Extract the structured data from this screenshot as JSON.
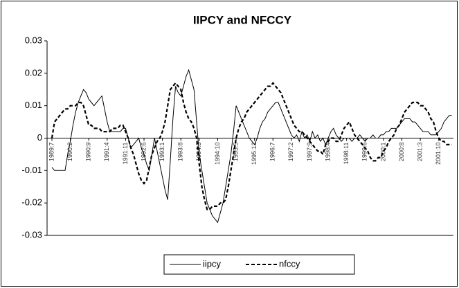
{
  "chart_data": {
    "type": "line",
    "title": "IIPCY and NFCCY",
    "categories": [
      "1989:7",
      null,
      null,
      null,
      null,
      null,
      null,
      "1990:2",
      null,
      null,
      null,
      null,
      null,
      null,
      "1990:9",
      null,
      null,
      null,
      null,
      null,
      null,
      "1991:4",
      null,
      null,
      null,
      null,
      null,
      null,
      "1991:11",
      null,
      null,
      null,
      null,
      null,
      null,
      "1992:6",
      null,
      null,
      null,
      null,
      null,
      null,
      "1993:1",
      null,
      null,
      null,
      null,
      null,
      null,
      "1993:8",
      null,
      null,
      null,
      null,
      null,
      null,
      "1994:3",
      null,
      null,
      null,
      null,
      null,
      null,
      "1994:10",
      null,
      null,
      null,
      null,
      null,
      null,
      "1995:5",
      null,
      null,
      null,
      null,
      null,
      null,
      "1995:12",
      null,
      null,
      null,
      null,
      null,
      null,
      "1996:7",
      null,
      null,
      null,
      null,
      null,
      null,
      "1997:2",
      null,
      null,
      null,
      null,
      null,
      null,
      "1997:9",
      null,
      null,
      null,
      null,
      null,
      null,
      "1998:4",
      null,
      null,
      null,
      null,
      null,
      null,
      "1998:11",
      null,
      null,
      null,
      null,
      null,
      null,
      "1999:6",
      null,
      null,
      null,
      null,
      null,
      null,
      "2000:1",
      null,
      null,
      null,
      null,
      null,
      null,
      "2000:8",
      null,
      null,
      null,
      null,
      null,
      null,
      "2001:3",
      null,
      null,
      null,
      null,
      null,
      null,
      "2001:10",
      null,
      null,
      null,
      null,
      null
    ],
    "series": [
      {
        "name": "iipcy",
        "color": "#000000",
        "dash": "solid",
        "values": [
          -0.009,
          -0.01,
          -0.01,
          -0.01,
          -0.01,
          -0.01,
          -0.005,
          -0.001,
          0.004,
          0.008,
          0.011,
          0.013,
          0.015,
          0.014,
          0.012,
          0.011,
          0.01,
          0.011,
          0.012,
          0.013,
          0.009,
          0.005,
          0.002,
          0.002,
          0.002,
          0.002,
          0.002,
          0.003,
          0.003,
          0,
          -0.003,
          -0.002,
          -0.001,
          0,
          -0.003,
          -0.005,
          -0.008,
          -0.01,
          -0.005,
          0,
          -0.004,
          -0.008,
          -0.012,
          -0.016,
          -0.019,
          -0.007,
          0.006,
          0.016,
          0.014,
          0.013,
          0.016,
          0.019,
          0.021,
          0.018,
          0.015,
          0.005,
          -0.005,
          -0.01,
          -0.015,
          -0.02,
          -0.022,
          -0.024,
          -0.025,
          -0.026,
          -0.023,
          -0.02,
          -0.015,
          -0.01,
          -0.005,
          0.002,
          0.01,
          0.008,
          0.006,
          0.004,
          0.002,
          0,
          -0.001,
          -0.002,
          0,
          0.003,
          0.005,
          0.006,
          0.008,
          0.009,
          0.01,
          0.011,
          0.011,
          0.009,
          0.007,
          0.005,
          0.003,
          0.001,
          0,
          0.001,
          -0.001,
          0.002,
          0,
          0.001,
          -0.001,
          0.002,
          0,
          0.001,
          -0.001,
          0,
          -0.002,
          0,
          0.002,
          0.003,
          0.001,
          0,
          -0.001,
          0,
          0,
          0,
          -0.001,
          0,
          0,
          0.001,
          0,
          -0.001,
          0,
          0,
          0.001,
          0,
          0,
          0.001,
          0.001,
          0.002,
          0.002,
          0.003,
          0.003,
          0.003,
          0.004,
          0.005,
          0.006,
          0.006,
          0.006,
          0.005,
          0.005,
          0.004,
          0.003,
          0.002,
          0.002,
          0.002,
          0.001,
          0.001,
          0.001,
          0.002,
          0.003,
          0.005,
          0.006,
          0.007,
          0.007
        ]
      },
      {
        "name": "nfccy",
        "color": "#000000",
        "dash": "dashed",
        "values": [
          0,
          0.005,
          0.006,
          0.007,
          0.008,
          0.009,
          0.009,
          0.01,
          0.01,
          0.01,
          0.011,
          0.011,
          0.01,
          0.007,
          0.004,
          0.004,
          0.003,
          0.003,
          0.003,
          0.002,
          0.002,
          0.002,
          0.002,
          0.003,
          0.003,
          0.003,
          0.004,
          0.004,
          0.002,
          0,
          -0.003,
          -0.005,
          -0.008,
          -0.011,
          -0.013,
          -0.014,
          -0.013,
          -0.009,
          -0.005,
          -0.003,
          -0.001,
          0,
          0.002,
          0.005,
          0.01,
          0.015,
          0.016,
          0.017,
          0.016,
          0.015,
          0.011,
          0.008,
          0.006,
          0.005,
          0.003,
          0,
          -0.008,
          -0.015,
          -0.019,
          -0.022,
          -0.022,
          -0.021,
          -0.021,
          -0.021,
          -0.02,
          -0.02,
          -0.019,
          -0.015,
          -0.01,
          -0.005,
          0,
          0.003,
          0.005,
          0.006,
          0.008,
          0.009,
          0.01,
          0.011,
          0.012,
          0.013,
          0.014,
          0.015,
          0.016,
          0.016,
          0.017,
          0.016,
          0.015,
          0.014,
          0.012,
          0.01,
          0.008,
          0.006,
          0.004,
          0.003,
          0.002,
          0.002,
          0.001,
          0,
          -0.001,
          -0.002,
          -0.003,
          -0.004,
          -0.004,
          -0.005,
          -0.002,
          -0.001,
          0,
          0,
          -0.001,
          -0.001,
          0.001,
          0.003,
          0.004,
          0.005,
          0.003,
          0.001,
          0,
          -0.001,
          -0.002,
          -0.003,
          -0.004,
          -0.006,
          -0.007,
          -0.007,
          -0.006,
          -0.006,
          -0.004,
          -0.003,
          -0.001,
          0,
          0.001,
          0.003,
          0.004,
          0.006,
          0.008,
          0.009,
          0.01,
          0.011,
          0.011,
          0.011,
          0.01,
          0.01,
          0.009,
          0.008,
          0.006,
          0.005,
          0.002,
          0,
          -0.001,
          -0.001,
          -0.002,
          -0.002,
          -0.002
        ]
      }
    ],
    "ylim": [
      -0.03,
      0.03
    ],
    "yticks": [
      0.03,
      0.02,
      0.01,
      0,
      -0.01,
      -0.02,
      -0.03
    ],
    "grid": false,
    "legend": "bottom"
  }
}
